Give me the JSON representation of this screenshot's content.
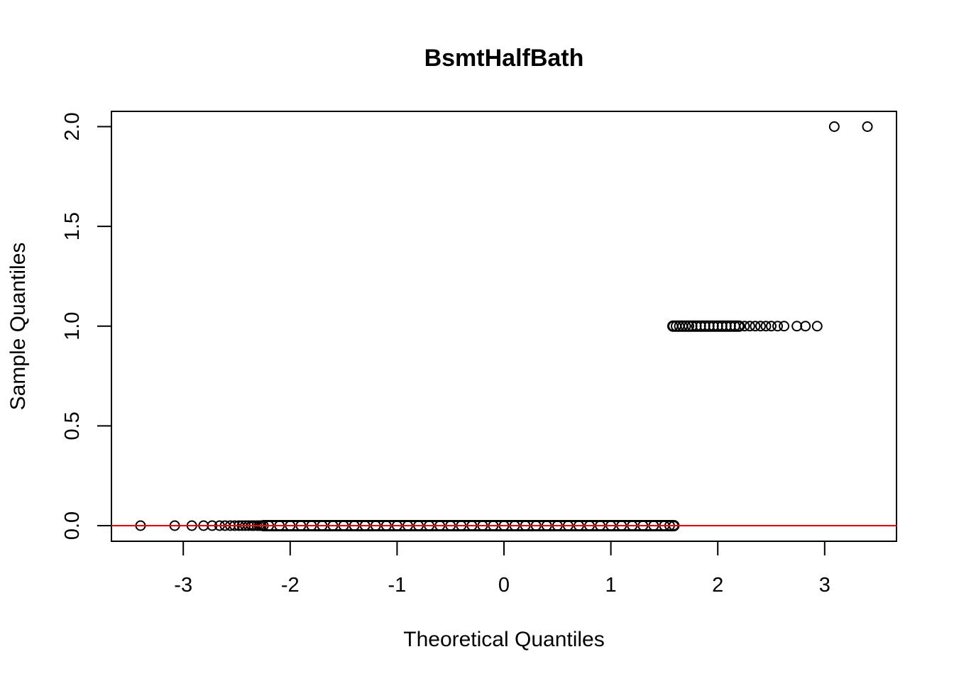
{
  "chart_data": {
    "type": "scatter",
    "title": "BsmtHalfBath",
    "xlabel": "Theoretical Quantiles",
    "ylabel": "Sample Quantiles",
    "xlim": [
      -3.65,
      3.7
    ],
    "ylim": [
      -0.08,
      2.08
    ],
    "grid": false,
    "legend": "none",
    "x_ticks": [
      -3,
      -2,
      -1,
      0,
      1,
      2,
      3
    ],
    "x_tick_labels": [
      "-3",
      "-2",
      "-1",
      "0",
      "1",
      "2",
      "3"
    ],
    "y_ticks": [
      0.0,
      0.5,
      1.0,
      1.5,
      2.0
    ],
    "y_tick_labels": [
      "0.0",
      "0.5",
      "1.0",
      "1.5",
      "2.0"
    ],
    "point_style": "open-circle",
    "point_color": "#000000",
    "series": [
      {
        "values_label": "sample_value_0",
        "y": 0,
        "x": [
          -3.4,
          -3.08,
          -2.92,
          -2.81,
          -2.73,
          -2.66,
          -2.61,
          -2.56,
          -2.52,
          -2.48,
          -2.45,
          -2.42,
          -2.39,
          -2.36,
          -2.34,
          -2.31,
          -2.29,
          -2.27,
          -2.25,
          -2.2,
          -2.1,
          -2.0,
          -1.9,
          -1.8,
          -1.7,
          -1.6,
          -1.5,
          -1.4,
          -1.3,
          -1.2,
          -1.1,
          -1.0,
          -0.9,
          -0.8,
          -0.7,
          -0.6,
          -0.5,
          -0.4,
          -0.3,
          -0.2,
          -0.1,
          0.0,
          0.1,
          0.2,
          0.3,
          0.4,
          0.5,
          0.6,
          0.7,
          0.8,
          0.9,
          1.0,
          1.1,
          1.2,
          1.3,
          1.4,
          1.5,
          1.55,
          1.59
        ]
      },
      {
        "values_label": "sample_value_1",
        "y": 1,
        "x": [
          1.58,
          1.61,
          1.64,
          1.67,
          1.7,
          1.73,
          1.76,
          1.8,
          1.84,
          1.88,
          1.92,
          1.96,
          2.0,
          2.04,
          2.08,
          2.12,
          2.16,
          2.2,
          2.25,
          2.3,
          2.35,
          2.4,
          2.45,
          2.5,
          2.56,
          2.62,
          2.74,
          2.82,
          2.93
        ]
      },
      {
        "values_label": "sample_value_2",
        "y": 2,
        "x": [
          3.09,
          3.4
        ]
      }
    ],
    "reference_line": {
      "intercept": 0,
      "slope": 0,
      "color": "#ff0000"
    }
  }
}
